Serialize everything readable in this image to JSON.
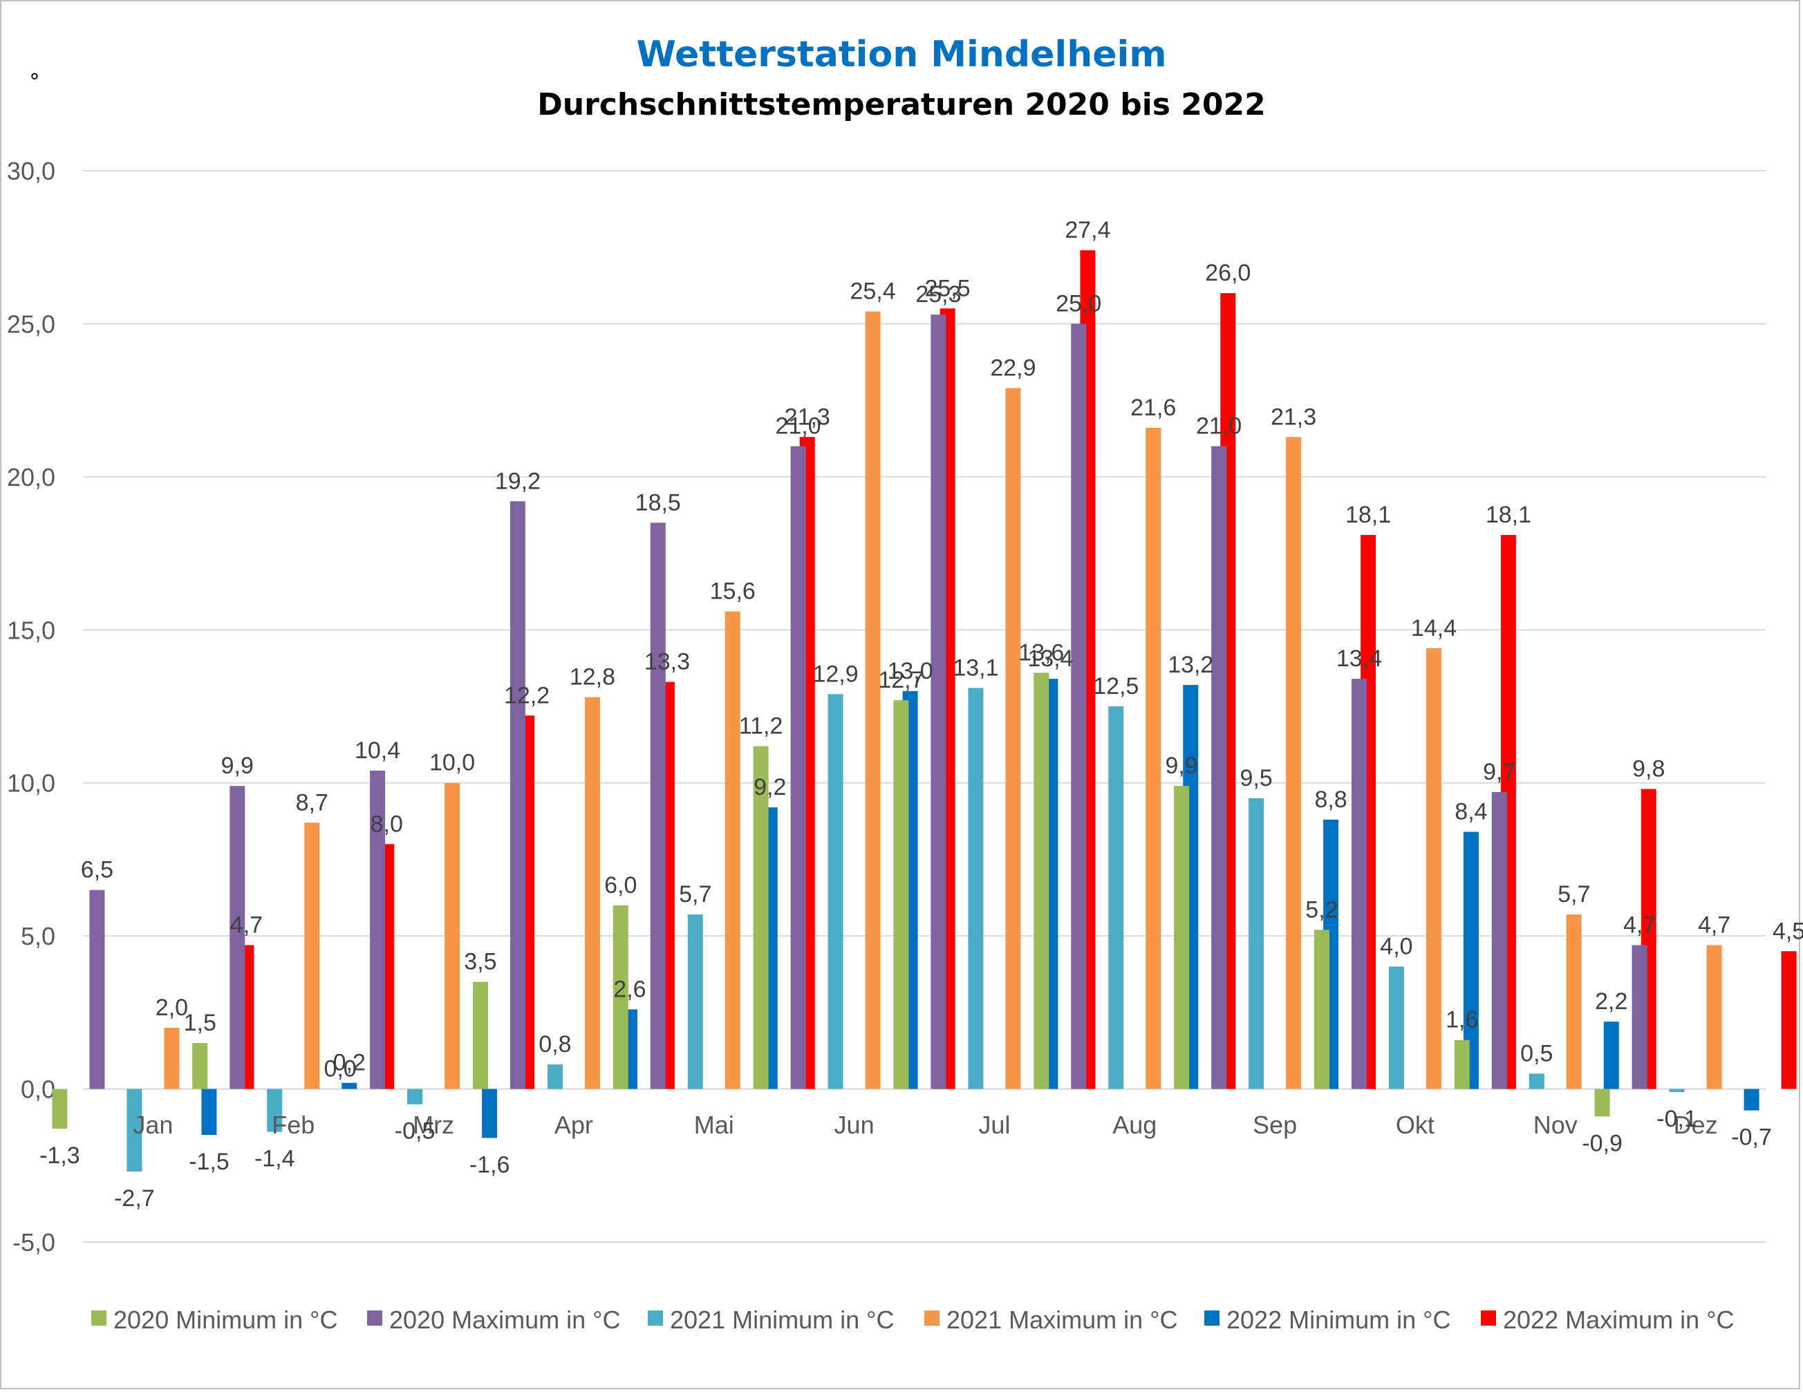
{
  "chart_data": {
    "type": "bar",
    "title": "Wetterstation Mindelheim",
    "subtitle": "Durchschnittstemperaturen 2020 bis 2022",
    "corner_mark": "°",
    "xlabel": "",
    "ylabel": "",
    "ylim": [
      -5,
      30
    ],
    "yticks": [
      "30,0",
      "25,0",
      "20,0",
      "15,0",
      "10,0",
      "5,0",
      "0,0",
      "-5,0"
    ],
    "grid": true,
    "legend_position": "bottom",
    "categories": [
      "Jan",
      "Feb",
      "Mrz",
      "Apr",
      "Mai",
      "Jun",
      "Jul",
      "Aug",
      "Sep",
      "Okt",
      "Nov",
      "Dez"
    ],
    "series": [
      {
        "name": "2020 Minimum in °C",
        "color": "#9bbb59",
        "values": [
          -1.3,
          1.5,
          0.0,
          3.5,
          6.0,
          11.2,
          12.7,
          13.6,
          9.9,
          5.2,
          1.6,
          -0.9
        ],
        "labels": [
          "-1,3",
          "1,5",
          "0,0",
          "3,5",
          "6,0",
          "11,2",
          "12,7",
          "13,6",
          "9,9",
          "5,2",
          "1,6",
          "-0,9"
        ]
      },
      {
        "name": "2020 Maximum in °C",
        "color": "#8064a2",
        "values": [
          6.5,
          9.9,
          10.4,
          19.2,
          18.5,
          21.0,
          25.3,
          25.0,
          21.0,
          13.4,
          9.7,
          4.7
        ],
        "labels": [
          "6,5",
          "9,9",
          "10,4",
          "19,2",
          "18,5",
          "21,0",
          "25,3",
          "25,0",
          "21,0",
          "13,4",
          "9,7",
          "4,7"
        ]
      },
      {
        "name": "2021 Minimum in °C",
        "color": "#4bacc6",
        "values": [
          -2.7,
          -1.4,
          -0.5,
          0.8,
          5.7,
          12.9,
          13.1,
          12.5,
          9.5,
          4.0,
          0.5,
          -0.1
        ],
        "labels": [
          "-2,7",
          "-1,4",
          "-0,5",
          "0,8",
          "5,7",
          "12,9",
          "13,1",
          "12,5",
          "9,5",
          "4,0",
          "0,5",
          "-0,1"
        ]
      },
      {
        "name": "2021 Maximum in °C",
        "color": "#f79646",
        "values": [
          2.0,
          8.7,
          10.0,
          12.8,
          15.6,
          25.4,
          22.9,
          21.6,
          21.3,
          14.4,
          5.7,
          4.7
        ],
        "labels": [
          "2,0",
          "8,7",
          "10,0",
          "12,8",
          "15,6",
          "25,4",
          "22,9",
          "21,6",
          "21,3",
          "14,4",
          "5,7",
          "4,7"
        ]
      },
      {
        "name": "2022 Minimum in °C",
        "color": "#0070c0",
        "values": [
          -1.5,
          0.2,
          -1.6,
          2.6,
          9.2,
          13.0,
          13.4,
          13.2,
          8.8,
          8.4,
          2.2,
          -0.7
        ],
        "labels": [
          "-1,5",
          "0,2",
          "-1,6",
          "2,6",
          "9,2",
          "13,0",
          "13,4",
          "13,2",
          "8,8",
          "8,4",
          "2,2",
          "-0,7"
        ]
      },
      {
        "name": "2022 Maximum in °C",
        "color": "#ff0000",
        "values": [
          4.7,
          8.0,
          12.2,
          13.3,
          21.3,
          25.5,
          27.4,
          26.0,
          18.1,
          18.1,
          9.8,
          4.5
        ],
        "labels": [
          "4,7",
          "8,0",
          "12,2",
          "13,3",
          "21,3",
          "25,5",
          "27,4",
          "26,0",
          "18,1",
          "18,1",
          "9,8",
          "4,5"
        ]
      }
    ]
  }
}
